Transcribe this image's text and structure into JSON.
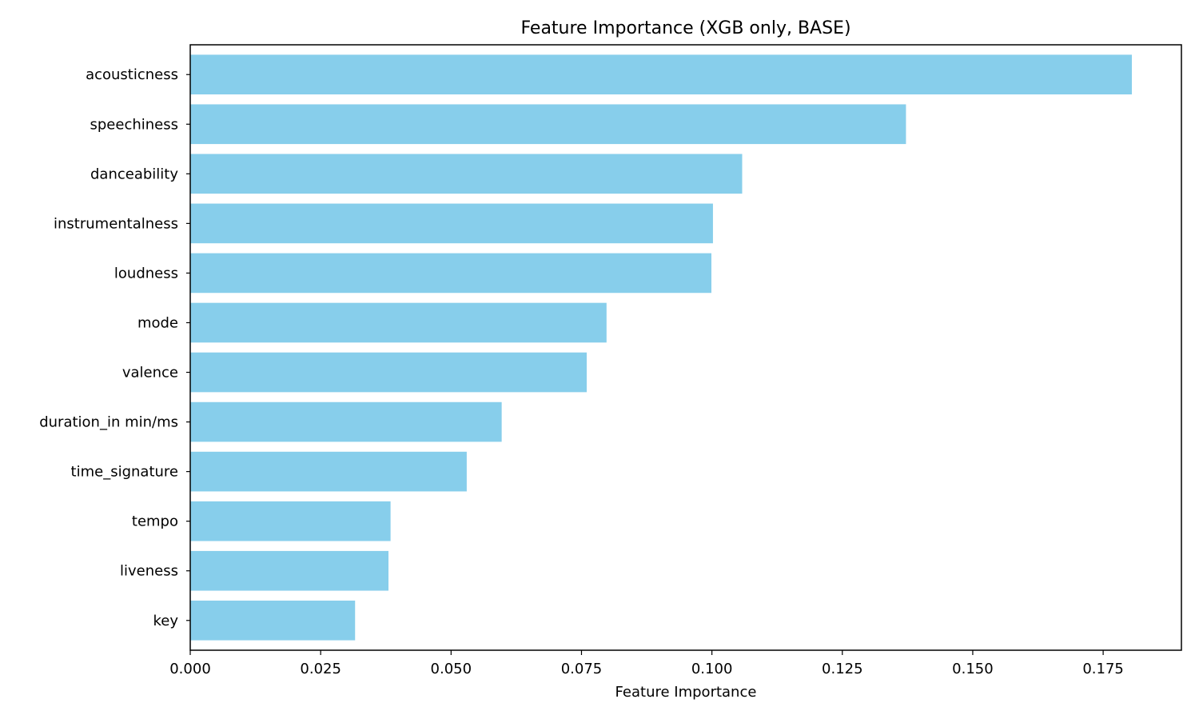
{
  "chart_data": {
    "type": "bar",
    "orientation": "horizontal",
    "title": "Feature Importance (XGB only, BASE)",
    "xlabel": "Feature Importance",
    "ylabel": "",
    "xlim": [
      0,
      0.19
    ],
    "xticks": [
      0,
      0.025,
      0.05,
      0.075,
      0.1,
      0.125,
      0.15,
      0.175
    ],
    "xtick_labels": [
      "0.000",
      "0.025",
      "0.050",
      "0.075",
      "0.100",
      "0.125",
      "0.150",
      "0.175"
    ],
    "grid": false,
    "legend": "none",
    "bar_color": "#87ceeb",
    "categories": [
      "acousticness",
      "speechiness",
      "danceability",
      "instrumentalness",
      "loudness",
      "mode",
      "valence",
      "duration_in min/ms",
      "time_signature",
      "tempo",
      "liveness",
      "key"
    ],
    "values": [
      0.1805,
      0.1372,
      0.1058,
      0.1002,
      0.0999,
      0.0798,
      0.076,
      0.0597,
      0.053,
      0.0384,
      0.038,
      0.0316
    ]
  }
}
